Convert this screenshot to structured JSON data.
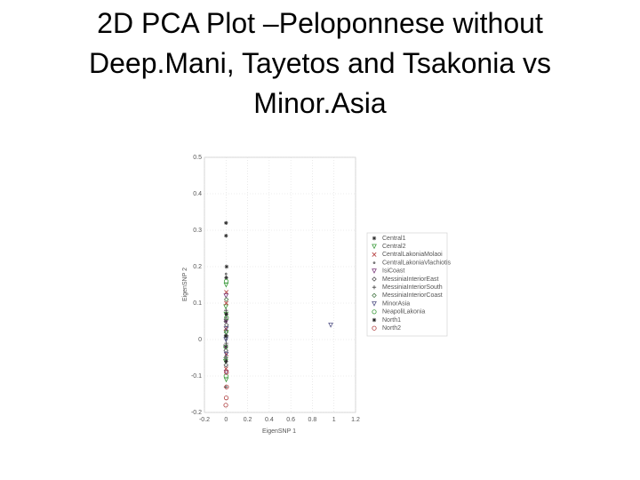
{
  "chart_data": {
    "type": "scatter",
    "title": "2D PCA Plot –Peloponnese without Deep.Mani, Tayetos and Tsakonia vs Minor.Asia",
    "x_label": "EigenSNP 1",
    "y_label": "EigenSNP 2",
    "xlim": [
      -0.2,
      1.2
    ],
    "ylim": [
      -0.2,
      0.5
    ],
    "xticks": [
      -0.2,
      0,
      0.2,
      0.4,
      0.6,
      0.8,
      1,
      1.2
    ],
    "yticks": [
      -0.2,
      -0.1,
      0,
      0.1,
      0.2,
      0.3,
      0.4,
      0.5
    ],
    "grid": true,
    "legend": "right",
    "series": [
      {
        "name": "Central1",
        "color": "#333333",
        "marker": "star",
        "x": [
          0,
          0,
          0.005,
          -0.003,
          0,
          0.002
        ],
        "y": [
          0.32,
          0.285,
          0.2,
          0.05,
          -0.02,
          0.17
        ]
      },
      {
        "name": "Central2",
        "color": "#3a9a3a",
        "marker": "tri-down",
        "x": [
          0,
          0.003,
          -0.004,
          0.002,
          0.001,
          -0.002
        ],
        "y": [
          0.07,
          0.02,
          -0.06,
          -0.11,
          0.15,
          0.09
        ]
      },
      {
        "name": "CentralLakoniaMolaoi",
        "color": "#b03030",
        "marker": "x",
        "x": [
          0.002,
          -0.002,
          0.004,
          0,
          0.003
        ],
        "y": [
          0.1,
          0.03,
          -0.04,
          -0.08,
          0.13
        ]
      },
      {
        "name": "CentralLakoniaVlachiotis",
        "color": "#777777",
        "marker": "dot",
        "x": [
          0,
          0.003,
          -0.002,
          0.001
        ],
        "y": [
          0.18,
          0,
          -0.05,
          0.06
        ]
      },
      {
        "name": "IsiCoast",
        "color": "#7a3a7a",
        "marker": "tri-down",
        "x": [
          0.001,
          -0.003,
          0.002,
          0
        ],
        "y": [
          0.05,
          -0.02,
          -0.09,
          0.12
        ]
      },
      {
        "name": "MessiniaInteriorEast",
        "color": "#555555",
        "marker": "diamond",
        "x": [
          0.002,
          -0.001,
          0.004,
          0
        ],
        "y": [
          0.01,
          -0.03,
          0.04,
          -0.07
        ]
      },
      {
        "name": "MessiniaInteriorSouth",
        "color": "#444444",
        "marker": "plus",
        "x": [
          0,
          0.002,
          -0.002
        ],
        "y": [
          0.08,
          -0.01,
          -0.13
        ]
      },
      {
        "name": "MessiniaInteriorCoast",
        "color": "#4a7a4a",
        "marker": "diamond",
        "x": [
          0.001,
          -0.002,
          0.003
        ],
        "y": [
          0.02,
          -0.05,
          0.11
        ]
      },
      {
        "name": "MinorAsia",
        "color": "#555588",
        "marker": "tri-down",
        "x": [
          0.97,
          0.002,
          -0.001,
          0.003
        ],
        "y": [
          0.04,
          -0.04,
          0.0,
          0.03
        ]
      },
      {
        "name": "NeapoliLakonia",
        "color": "#3a9a3a",
        "marker": "circle",
        "x": [
          0,
          0.004,
          -0.003,
          0.002
        ],
        "y": [
          -0.1,
          0.06,
          -0.02,
          0.16
        ]
      },
      {
        "name": "North1",
        "color": "#222222",
        "marker": "star",
        "x": [
          0.001,
          -0.002,
          0.003
        ],
        "y": [
          -0.06,
          0.01,
          0.07
        ]
      },
      {
        "name": "North2",
        "color": "#b04040",
        "marker": "circle",
        "x": [
          0.005,
          0.002,
          -0.002,
          0.004
        ],
        "y": [
          -0.13,
          -0.16,
          -0.18,
          -0.09
        ]
      }
    ]
  }
}
